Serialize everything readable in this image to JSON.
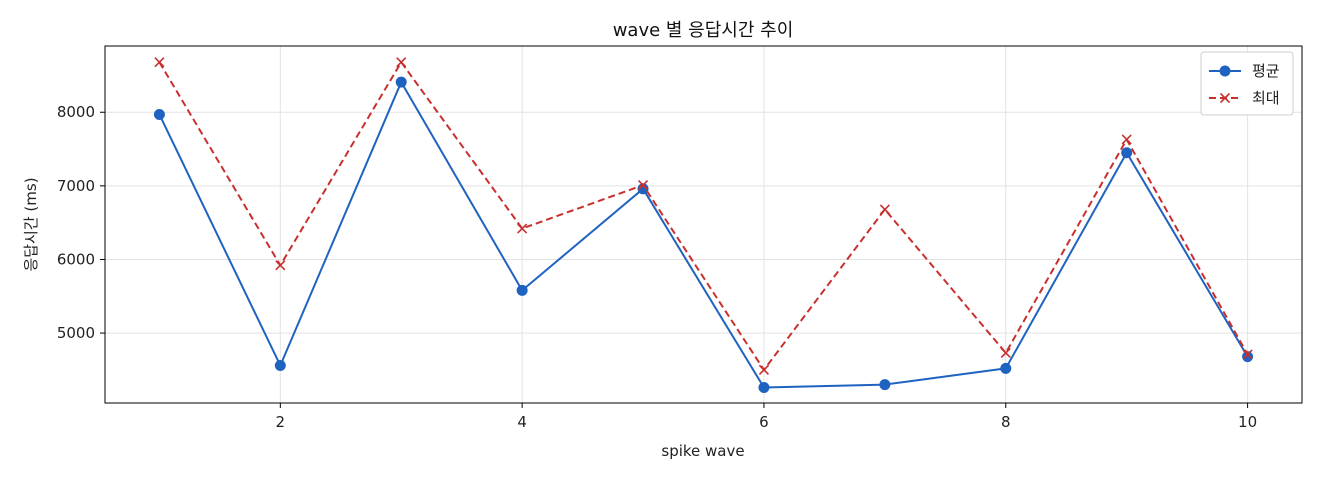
{
  "chart_data": {
    "type": "line",
    "title": "wave 별 응답시간 추이",
    "xlabel": "spike wave",
    "ylabel": "응답시간 (ms)",
    "x": [
      1,
      2,
      3,
      4,
      5,
      6,
      7,
      8,
      9,
      10
    ],
    "xlim": [
      0.55,
      10.45
    ],
    "ylim": [
      4050,
      8900
    ],
    "xticks": [
      2,
      4,
      6,
      8,
      10
    ],
    "yticks": [
      5000,
      6000,
      7000,
      8000
    ],
    "grid": true,
    "legend_position": "top-right",
    "series": [
      {
        "name": "평균",
        "color": "#1f63c0",
        "line_style": "solid",
        "marker": "circle",
        "values": [
          7970,
          4560,
          8410,
          5580,
          6960,
          4260,
          4300,
          4520,
          7450,
          4680
        ]
      },
      {
        "name": "최대",
        "color": "#c8302f",
        "line_style": "dashed",
        "marker": "x",
        "values": [
          8680,
          5920,
          8680,
          6420,
          7010,
          4500,
          6680,
          4730,
          7630,
          4710
        ]
      }
    ]
  }
}
